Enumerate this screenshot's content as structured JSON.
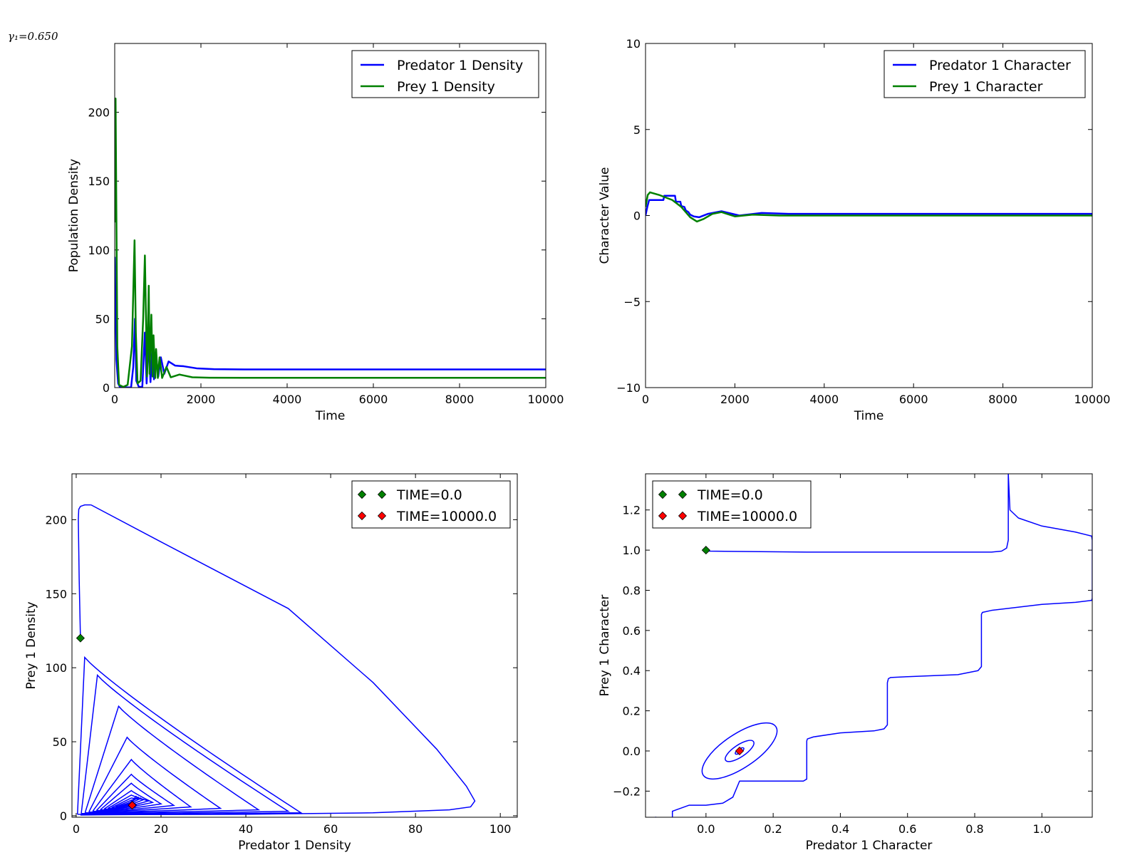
{
  "annotation": "γ₁=0.650",
  "colors": {
    "blue": "#0000ff",
    "green": "#008000",
    "red": "#ff0000",
    "start_marker": "#008000",
    "end_marker": "#ff0000"
  },
  "chart_data": [
    {
      "type": "line",
      "xlabel": "Time",
      "ylabel": "Population Density",
      "xlim": [
        0,
        10000
      ],
      "ylim": [
        0,
        250
      ],
      "xticks": [
        0,
        2000,
        4000,
        6000,
        8000,
        10000
      ],
      "xtick_labels": [
        "0",
        "2000",
        "4000",
        "6000",
        "8000",
        "10000"
      ],
      "yticks": [
        0,
        50,
        100,
        150,
        200
      ],
      "ytick_labels": [
        "0",
        "50",
        "100",
        "150",
        "200"
      ],
      "legend_position": "top-right",
      "series": [
        {
          "name": "Predator 1 Density",
          "color": "#0000ff",
          "x": [
            0,
            20,
            40,
            80,
            120,
            200,
            380,
            430,
            470,
            500,
            560,
            640,
            700,
            740,
            790,
            830,
            870,
            910,
            960,
            1010,
            1070,
            1150,
            1250,
            1400,
            1600,
            1900,
            2300,
            3000,
            5000,
            10000
          ],
          "y": [
            95,
            60,
            20,
            3,
            0.5,
            0.1,
            0.2,
            15,
            50,
            5,
            0.5,
            0.5,
            40,
            3,
            35,
            4,
            28,
            6,
            24,
            8,
            22,
            10,
            19,
            16,
            15.5,
            14,
            13.4,
            13.2,
            13.2,
            13.2
          ]
        },
        {
          "name": "Prey 1 Density",
          "color": "#008000",
          "x": [
            0,
            5,
            20,
            40,
            60,
            100,
            200,
            300,
            400,
            460,
            490,
            530,
            600,
            660,
            700,
            750,
            790,
            810,
            850,
            880,
            900,
            940,
            960,
            1000,
            1040,
            1100,
            1200,
            1300,
            1500,
            1800,
            2200,
            3000,
            10000
          ],
          "y": [
            120,
            170,
            210,
            120,
            30,
            2,
            0.5,
            2,
            30,
            107,
            40,
            3,
            5,
            50,
            96,
            8,
            74,
            10,
            53,
            8,
            38,
            7,
            28,
            7,
            22,
            7,
            15,
            7.5,
            9.5,
            7.5,
            7.2,
            7.1,
            7.1
          ]
        }
      ]
    },
    {
      "type": "line",
      "xlabel": "Time",
      "ylabel": "Character Value",
      "xlim": [
        0,
        10000
      ],
      "ylim": [
        -10,
        10
      ],
      "xticks": [
        0,
        2000,
        4000,
        6000,
        8000,
        10000
      ],
      "xtick_labels": [
        "0",
        "2000",
        "4000",
        "6000",
        "8000",
        "10000"
      ],
      "yticks": [
        -10,
        -5,
        0,
        5,
        10
      ],
      "ytick_labels": [
        "−10",
        "−5",
        "0",
        "5",
        "10"
      ],
      "legend_position": "top-right",
      "series": [
        {
          "name": "Predator 1 Character",
          "color": "#0000ff",
          "x": [
            0,
            40,
            80,
            400,
            420,
            660,
            680,
            780,
            800,
            870,
            900,
            960,
            1000,
            1080,
            1200,
            1400,
            1700,
            2100,
            2600,
            3200,
            4000,
            10000
          ],
          "y": [
            0,
            0.5,
            0.9,
            0.9,
            1.15,
            1.15,
            0.8,
            0.8,
            0.55,
            0.5,
            0.3,
            0.2,
            0.05,
            -0.05,
            -0.1,
            0.1,
            0.25,
            0.0,
            0.15,
            0.1,
            0.1,
            0.1
          ]
        },
        {
          "name": "Prey 1 Character",
          "color": "#008000",
          "x": [
            0,
            50,
            100,
            300,
            600,
            800,
            1000,
            1150,
            1300,
            1500,
            1700,
            2000,
            2400,
            3000,
            10000
          ],
          "y": [
            0.5,
            1.2,
            1.35,
            1.2,
            0.9,
            0.5,
            -0.1,
            -0.35,
            -0.2,
            0.1,
            0.2,
            -0.05,
            0.05,
            0.0,
            0.0
          ]
        }
      ]
    },
    {
      "type": "line",
      "xlabel": "Predator 1 Density",
      "ylabel": "Prey 1 Density",
      "xlim": [
        -1,
        104
      ],
      "ylim": [
        -1,
        231
      ],
      "xticks": [
        0,
        20,
        40,
        60,
        80,
        100
      ],
      "xtick_labels": [
        "0",
        "20",
        "40",
        "60",
        "80",
        "100"
      ],
      "yticks": [
        0,
        50,
        100,
        150,
        200
      ],
      "ytick_labels": [
        "0",
        "50",
        "100",
        "150",
        "200"
      ],
      "legend_position": "top-right",
      "legend": [
        {
          "label": "TIME=0.0",
          "color": "#008000"
        },
        {
          "label": "TIME=10000.0",
          "color": "#ff0000"
        }
      ],
      "start_point": {
        "x": 1,
        "y": 120
      },
      "end_point": {
        "x": 13.2,
        "y": 7.1
      },
      "trajectory": {
        "color": "#0000ff",
        "center": [
          13.2,
          7.1
        ],
        "initial_path": {
          "x": [
            1,
            0.7,
            0.5,
            0.6,
            1,
            2,
            3.5
          ],
          "y": [
            120,
            160,
            200,
            207,
            209,
            210,
            210
          ]
        },
        "outer_loop": {
          "x": [
            3.5,
            20,
            50,
            70,
            85,
            92,
            94,
            93,
            88,
            70,
            40,
            15,
            5,
            1
          ],
          "y": [
            210,
            185,
            140,
            90,
            45,
            20,
            10,
            6,
            4,
            2,
            1,
            0.8,
            0.6,
            0.5
          ]
        },
        "loops": [
          {
            "peak_x": 2,
            "peak_y": 107,
            "right_x": 53,
            "floor_y": 1.0
          },
          {
            "peak_x": 5,
            "peak_y": 95,
            "right_x": 50,
            "floor_y": 1.5
          },
          {
            "peak_x": 10,
            "peak_y": 74,
            "right_x": 43,
            "floor_y": 2.0
          },
          {
            "peak_x": 12,
            "peak_y": 53,
            "right_x": 34,
            "floor_y": 2.5
          },
          {
            "peak_x": 13,
            "peak_y": 38,
            "right_x": 27,
            "floor_y": 3.0
          },
          {
            "peak_x": 13,
            "peak_y": 28,
            "right_x": 23,
            "floor_y": 3.5
          },
          {
            "peak_x": 13,
            "peak_y": 22,
            "right_x": 20,
            "floor_y": 4.0
          },
          {
            "peak_x": 13,
            "peak_y": 17,
            "right_x": 18,
            "floor_y": 4.5
          },
          {
            "peak_x": 13,
            "peak_y": 14,
            "right_x": 17,
            "floor_y": 5.0
          },
          {
            "peak_x": 13,
            "peak_y": 12,
            "right_x": 16,
            "floor_y": 5.5
          },
          {
            "peak_x": 13,
            "peak_y": 10.5,
            "right_x": 15.3,
            "floor_y": 6.0
          },
          {
            "peak_x": 13,
            "peak_y": 9.3,
            "right_x": 14.7,
            "floor_y": 6.4
          },
          {
            "peak_x": 13,
            "peak_y": 8.4,
            "right_x": 14.2,
            "floor_y": 6.7
          }
        ]
      }
    },
    {
      "type": "line",
      "xlabel": "Predator 1 Character",
      "ylabel": "Prey 1 Character",
      "xlim": [
        -0.18,
        1.15
      ],
      "ylim": [
        -0.33,
        1.38
      ],
      "xticks": [
        0.0,
        0.2,
        0.4,
        0.6,
        0.8,
        1.0
      ],
      "xtick_labels": [
        "0.0",
        "0.2",
        "0.4",
        "0.6",
        "0.8",
        "1.0"
      ],
      "yticks": [
        -0.2,
        0.0,
        0.2,
        0.4,
        0.6,
        0.8,
        1.0,
        1.2
      ],
      "ytick_labels": [
        "−0.2",
        "0.0",
        "0.2",
        "0.4",
        "0.6",
        "0.8",
        "1.0",
        "1.2"
      ],
      "legend_position": "top-left",
      "legend": [
        {
          "label": "TIME=0.0",
          "color": "#008000"
        },
        {
          "label": "TIME=10000.0",
          "color": "#ff0000"
        }
      ],
      "start_point": {
        "x": 0.0,
        "y": 1.0
      },
      "end_point": {
        "x": 0.1,
        "y": 0.0
      },
      "trajectory": {
        "color": "#0000ff",
        "x": [
          0.0,
          0.01,
          0.3,
          0.85,
          0.88,
          0.895,
          0.9,
          0.9,
          0.9,
          0.905,
          0.93,
          1.0,
          1.1,
          1.148,
          1.15,
          1.15,
          1.148,
          1.1,
          1.0,
          0.85,
          0.823,
          0.82,
          0.82,
          0.81,
          0.75,
          0.6,
          0.55,
          0.543,
          0.54,
          0.54,
          0.53,
          0.5,
          0.4,
          0.32,
          0.302,
          0.3,
          0.3,
          0.29,
          0.2,
          0.1,
          0.08,
          0.05,
          0.0,
          -0.05,
          -0.1,
          -0.1,
          -0.12,
          -0.15,
          -0.18
        ],
        "y": [
          1.0,
          0.995,
          0.99,
          0.99,
          0.995,
          1.01,
          1.05,
          1.2,
          1.38,
          1.2,
          1.16,
          1.12,
          1.09,
          1.07,
          1.05,
          0.76,
          0.75,
          0.74,
          0.73,
          0.7,
          0.69,
          0.68,
          0.42,
          0.4,
          0.38,
          0.37,
          0.366,
          0.36,
          0.34,
          0.13,
          0.11,
          0.1,
          0.09,
          0.07,
          0.06,
          0.05,
          -0.14,
          -0.15,
          -0.15,
          -0.15,
          -0.23,
          -0.26,
          -0.27,
          -0.27,
          -0.3,
          -0.35,
          -0.34,
          -0.33,
          -0.35
        ]
      },
      "spiral_loops": [
        {
          "center": [
            0.1,
            0.0
          ],
          "rx": 0.26,
          "ry": 0.07
        },
        {
          "center": [
            0.1,
            0.0
          ],
          "rx": 0.1,
          "ry": 0.025
        },
        {
          "center": [
            0.1,
            0.0
          ],
          "rx": 0.03,
          "ry": 0.008
        }
      ]
    }
  ]
}
